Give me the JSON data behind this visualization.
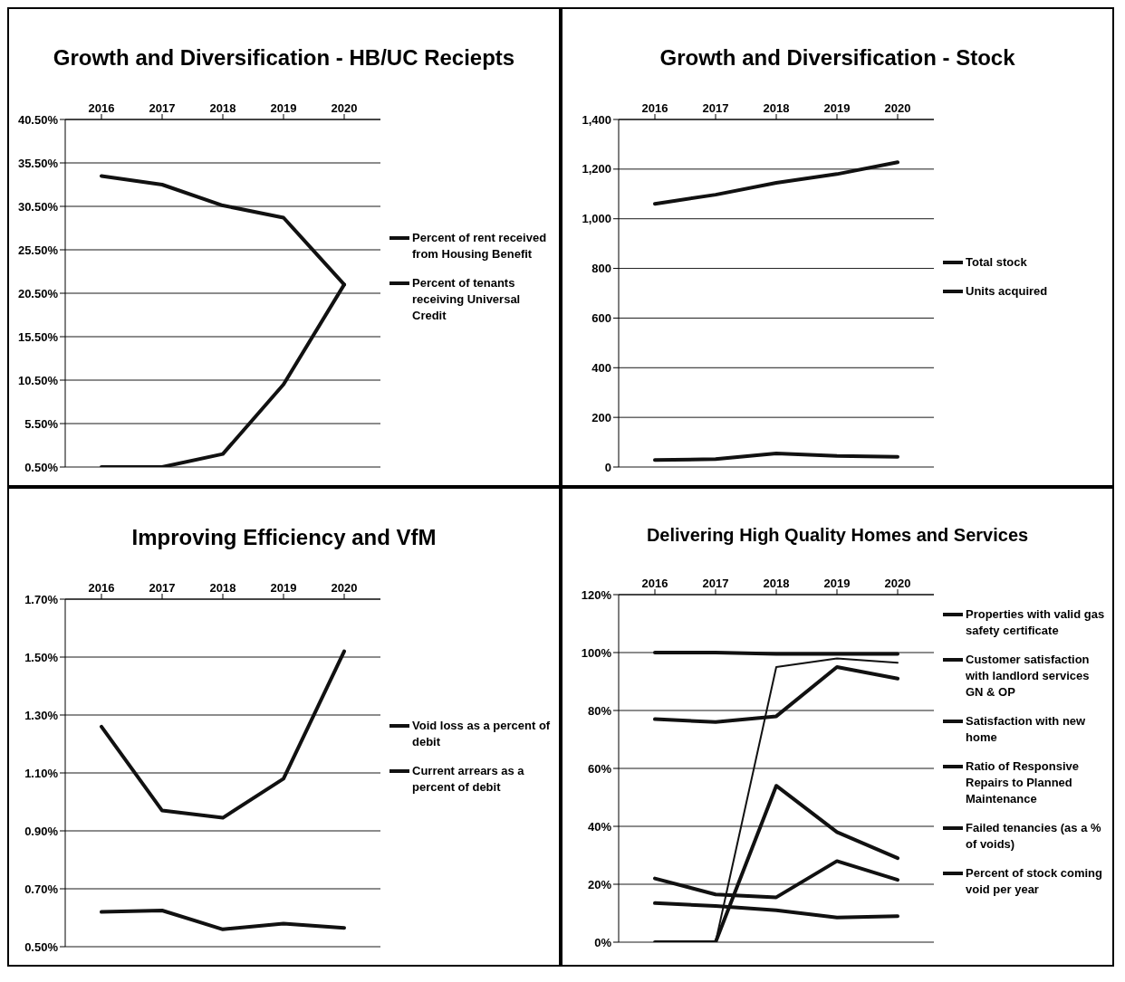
{
  "chart_data": [
    {
      "type": "line",
      "title": "Growth and Diversification - HB/UC Reciepts",
      "categories": [
        "2016",
        "2017",
        "2018",
        "2019",
        "2020"
      ],
      "ylim": [
        0.5,
        40.5
      ],
      "yticks": [
        {
          "value": 0.5,
          "label": "0.50%"
        },
        {
          "value": 5.5,
          "label": "5.50%"
        },
        {
          "value": 10.5,
          "label": "10.50%"
        },
        {
          "value": 15.5,
          "label": "15.50%"
        },
        {
          "value": 20.5,
          "label": "20.50%"
        },
        {
          "value": 25.5,
          "label": "25.50%"
        },
        {
          "value": 30.5,
          "label": "30.50%"
        },
        {
          "value": 35.5,
          "label": "35.50%"
        },
        {
          "value": 40.5,
          "label": "40.50%"
        }
      ],
      "grid": "y",
      "legend": "right",
      "series": [
        {
          "name": "Percent of rent received from Housing Benefit",
          "color": "#111111",
          "values": [
            34.0,
            33.0,
            30.6,
            29.2,
            21.5
          ]
        },
        {
          "name": "Percent of tenants receiving Universal Credit",
          "color": "#111111",
          "values": [
            0.5,
            0.5,
            2.0,
            10.0,
            21.5
          ]
        }
      ]
    },
    {
      "type": "line",
      "title": "Growth and Diversification - Stock",
      "categories": [
        "2016",
        "2017",
        "2018",
        "2019",
        "2020"
      ],
      "ylim": [
        0,
        1400
      ],
      "yticks": [
        0,
        200,
        400,
        600,
        800,
        {
          "value": 1000,
          "label": "1,000"
        },
        {
          "value": 1200,
          "label": "1,200"
        },
        {
          "value": 1400,
          "label": "1,400"
        }
      ],
      "grid": "y",
      "legend": "right",
      "series": [
        {
          "name": "Total stock",
          "color": "#111111",
          "values": [
            1060,
            1097,
            1145,
            1180,
            1228
          ]
        },
        {
          "name": "Units acquired",
          "color": "#111111",
          "values": [
            28,
            32,
            55,
            45,
            41
          ]
        }
      ]
    },
    {
      "type": "line",
      "title": "Improving Efficiency and VfM",
      "categories": [
        "2016",
        "2017",
        "2018",
        "2019",
        "2020"
      ],
      "ylim": [
        0.5,
        1.7
      ],
      "yticks": [
        {
          "value": 0.5,
          "label": "0.50%"
        },
        {
          "value": 0.7,
          "label": "0.70%"
        },
        {
          "value": 0.9,
          "label": "0.90%"
        },
        {
          "value": 1.1,
          "label": "1.10%"
        },
        {
          "value": 1.3,
          "label": "1.30%"
        },
        {
          "value": 1.5,
          "label": "1.50%"
        },
        {
          "value": 1.7,
          "label": "1.70%"
        }
      ],
      "grid": "y",
      "legend": "right",
      "series": [
        {
          "name": "Void loss as a percent of debit",
          "color": "#111111",
          "values": [
            0.62,
            0.625,
            0.56,
            0.58,
            0.565
          ]
        },
        {
          "name": "Current arrears as a percent of debit",
          "color": "#111111",
          "values": [
            1.26,
            0.97,
            0.945,
            1.08,
            1.52
          ]
        }
      ]
    },
    {
      "type": "line",
      "title": "Delivering High Quality Homes and Services",
      "categories": [
        "2016",
        "2017",
        "2018",
        "2019",
        "2020"
      ],
      "ylim": [
        0,
        120
      ],
      "yticks": [
        {
          "value": 0,
          "label": "0%"
        },
        {
          "value": 20,
          "label": "20%"
        },
        {
          "value": 40,
          "label": "40%"
        },
        {
          "value": 60,
          "label": "60%"
        },
        {
          "value": 80,
          "label": "80%"
        },
        {
          "value": 100,
          "label": "100%"
        },
        {
          "value": 120,
          "label": "120%"
        }
      ],
      "grid": "y",
      "legend": "right",
      "series": [
        {
          "name": "Properties with valid gas safety certificate",
          "color": "#111111",
          "values": [
            100,
            100,
            99.5,
            99.5,
            99.5
          ]
        },
        {
          "name": "Customer satisfaction with landlord services GN & OP",
          "color": "#111111",
          "values": [
            0,
            0,
            95,
            98,
            96.5
          ]
        },
        {
          "name": "Satisfaction with new home",
          "color": "#111111",
          "values": [
            77,
            76,
            78,
            95,
            91
          ]
        },
        {
          "name": "Ratio of Responsive Repairs to Planned Maintenance",
          "color": "#111111",
          "values": [
            0,
            0,
            54,
            38,
            29
          ]
        },
        {
          "name": "Failed tenancies (as a % of voids)",
          "color": "#111111",
          "values": [
            22,
            16.5,
            15.5,
            28,
            21.5
          ]
        },
        {
          "name": "Percent of stock coming void per year",
          "color": "#111111",
          "values": [
            13.5,
            12.5,
            11,
            8.5,
            9
          ]
        }
      ]
    }
  ]
}
